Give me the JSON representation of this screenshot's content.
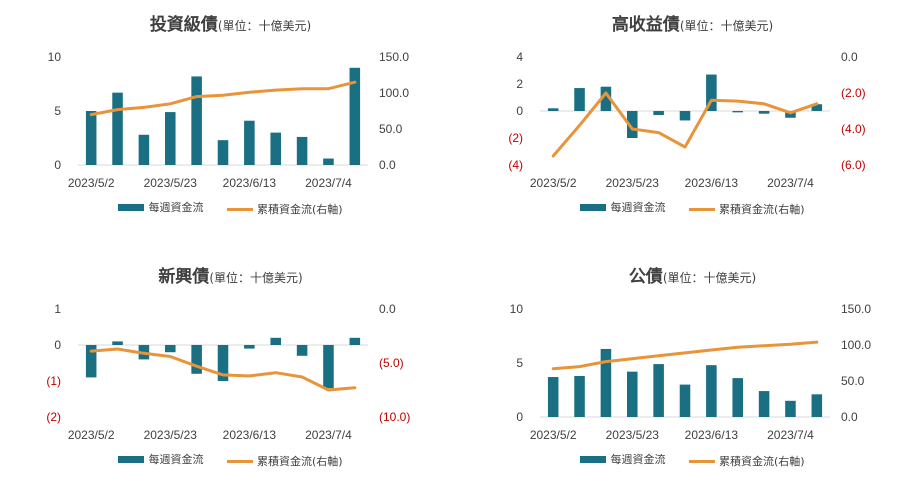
{
  "colors": {
    "bar": "#1a6f82",
    "line": "#e8943a",
    "axis_text": "#404040",
    "negative_text": "#c00000",
    "axis_line": "#d9d9d9"
  },
  "legend": {
    "bar_label": "每週資金流",
    "line_label": "累積資金流(右軸)"
  },
  "chart_data": [
    {
      "type": "bar",
      "title": "投資級債",
      "unit": "(單位：十億美元)",
      "x_tick_labels": [
        "2023/5/2",
        "2023/5/23",
        "2023/6/13",
        "2023/7/4"
      ],
      "y_left": {
        "range": [
          0,
          10
        ],
        "ticks": [
          0,
          5,
          10
        ],
        "labels": [
          "0",
          "5",
          "10"
        ]
      },
      "y_right": {
        "range": [
          0,
          150
        ],
        "ticks": [
          0,
          50,
          100,
          150
        ],
        "labels": [
          "0.0",
          "50.0",
          "100.0",
          "150.0"
        ]
      },
      "series": [
        {
          "name": "每週資金流",
          "axis": "left",
          "values": [
            5.0,
            6.7,
            2.8,
            4.9,
            8.2,
            2.3,
            4.1,
            3.0,
            2.6,
            0.6,
            9.0
          ]
        },
        {
          "name": "累積資金流(右軸)",
          "axis": "right",
          "values": [
            70,
            77,
            80,
            85,
            95,
            97,
            101,
            104,
            106,
            106,
            115
          ]
        }
      ]
    },
    {
      "type": "bar",
      "title": "高收益債",
      "unit": "(單位：十億美元)",
      "x_tick_labels": [
        "2023/5/2",
        "2023/5/23",
        "2023/6/13",
        "2023/7/4"
      ],
      "y_left": {
        "range": [
          -4,
          4
        ],
        "ticks": [
          -4,
          -2,
          0,
          2,
          4
        ],
        "labels": [
          "(4)",
          "(2)",
          "0",
          "2",
          "4"
        ]
      },
      "y_right": {
        "range": [
          -6,
          0
        ],
        "ticks": [
          -6,
          -4,
          -2,
          0
        ],
        "labels": [
          "(6.0)",
          "(4.0)",
          "(2.0)",
          "0.0"
        ]
      },
      "series": [
        {
          "name": "每週資金流",
          "axis": "left",
          "values": [
            0.2,
            1.7,
            1.8,
            -2.0,
            -0.3,
            -0.7,
            2.7,
            -0.1,
            -0.2,
            -0.5,
            0.5
          ]
        },
        {
          "name": "累積資金流(右軸)",
          "axis": "right",
          "values": [
            -5.5,
            -3.8,
            -2.0,
            -4.0,
            -4.2,
            -5.0,
            -2.4,
            -2.45,
            -2.6,
            -3.1,
            -2.6
          ]
        }
      ]
    },
    {
      "type": "bar",
      "title": "新興債",
      "unit": "(單位：十億美元)",
      "x_tick_labels": [
        "2023/5/2",
        "2023/5/23",
        "2023/6/13",
        "2023/7/4"
      ],
      "y_left": {
        "range": [
          -2,
          1
        ],
        "ticks": [
          -2,
          -1,
          0,
          1
        ],
        "labels": [
          "(2)",
          "(1)",
          "0",
          "1"
        ]
      },
      "y_right": {
        "range": [
          -10,
          0
        ],
        "ticks": [
          -10,
          -5,
          0
        ],
        "labels": [
          "(10.0)",
          "(5.0)",
          "0.0"
        ]
      },
      "series": [
        {
          "name": "每週資金流",
          "axis": "left",
          "values": [
            -0.9,
            0.1,
            -0.4,
            -0.2,
            -0.8,
            -1.0,
            -0.1,
            0.2,
            -0.3,
            -1.2,
            0.2
          ]
        },
        {
          "name": "累積資金流(右軸)",
          "axis": "right",
          "values": [
            -3.9,
            -3.7,
            -4.1,
            -4.4,
            -5.3,
            -6.1,
            -6.2,
            -5.9,
            -6.3,
            -7.5,
            -7.3
          ]
        }
      ]
    },
    {
      "type": "bar",
      "title": "公債",
      "unit": "(單位：十億美元)",
      "x_tick_labels": [
        "2023/5/2",
        "2023/5/23",
        "2023/6/13",
        "2023/7/4"
      ],
      "y_left": {
        "range": [
          0,
          10
        ],
        "ticks": [
          0,
          5,
          10
        ],
        "labels": [
          "0",
          "5",
          "10"
        ]
      },
      "y_right": {
        "range": [
          0,
          150
        ],
        "ticks": [
          0,
          50,
          100,
          150
        ],
        "labels": [
          "0.0",
          "50.0",
          "100.0",
          "150.0"
        ]
      },
      "series": [
        {
          "name": "每週資金流",
          "axis": "left",
          "values": [
            3.7,
            3.8,
            6.3,
            4.2,
            4.9,
            3.0,
            4.8,
            3.6,
            2.4,
            1.5,
            2.1
          ]
        },
        {
          "name": "累積資金流(右軸)",
          "axis": "right",
          "values": [
            67,
            70,
            77,
            81,
            85,
            89,
            93,
            97,
            99,
            101,
            104
          ]
        }
      ]
    }
  ]
}
